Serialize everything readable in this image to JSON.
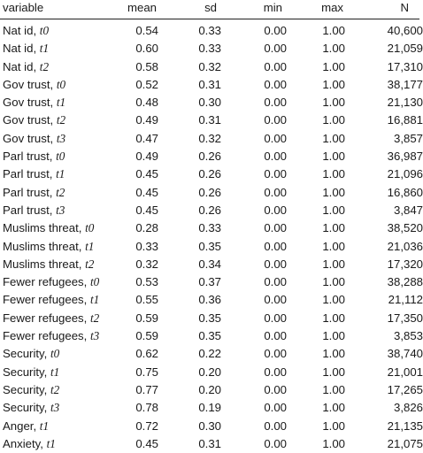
{
  "header": {
    "variable": "variable",
    "mean": "mean",
    "sd": "sd",
    "min": "min",
    "max": "max",
    "n": "N"
  },
  "rows": [
    {
      "name": "Nat id, ",
      "time": "t0",
      "mean": "0.54",
      "sd": "0.33",
      "min": "0.00",
      "max": "1.00",
      "n": "40,600"
    },
    {
      "name": "Nat id, ",
      "time": "t1",
      "mean": "0.60",
      "sd": "0.33",
      "min": "0.00",
      "max": "1.00",
      "n": "21,059"
    },
    {
      "name": "Nat id, ",
      "time": "t2",
      "mean": "0.58",
      "sd": "0.32",
      "min": "0.00",
      "max": "1.00",
      "n": "17,310"
    },
    {
      "name": "Gov trust, ",
      "time": "t0",
      "mean": "0.52",
      "sd": "0.31",
      "min": "0.00",
      "max": "1.00",
      "n": "38,177"
    },
    {
      "name": "Gov trust, ",
      "time": "t1",
      "mean": "0.48",
      "sd": "0.30",
      "min": "0.00",
      "max": "1.00",
      "n": "21,130"
    },
    {
      "name": "Gov trust, ",
      "time": "t2",
      "mean": "0.49",
      "sd": "0.31",
      "min": "0.00",
      "max": "1.00",
      "n": "16,881"
    },
    {
      "name": "Gov trust, ",
      "time": "t3",
      "mean": "0.47",
      "sd": "0.32",
      "min": "0.00",
      "max": "1.00",
      "n": "3,857"
    },
    {
      "name": "Parl trust, ",
      "time": "t0",
      "mean": "0.49",
      "sd": "0.26",
      "min": "0.00",
      "max": "1.00",
      "n": "36,987"
    },
    {
      "name": "Parl trust, ",
      "time": "t1",
      "mean": "0.45",
      "sd": "0.26",
      "min": "0.00",
      "max": "1.00",
      "n": "21,096"
    },
    {
      "name": "Parl trust, ",
      "time": "t2",
      "mean": "0.45",
      "sd": "0.26",
      "min": "0.00",
      "max": "1.00",
      "n": "16,860"
    },
    {
      "name": "Parl trust, ",
      "time": "t3",
      "mean": "0.45",
      "sd": "0.26",
      "min": "0.00",
      "max": "1.00",
      "n": "3,847"
    },
    {
      "name": "Muslims threat, ",
      "time": "t0",
      "mean": "0.28",
      "sd": "0.33",
      "min": "0.00",
      "max": "1.00",
      "n": "38,520"
    },
    {
      "name": "Muslims threat, ",
      "time": "t1",
      "mean": "0.33",
      "sd": "0.35",
      "min": "0.00",
      "max": "1.00",
      "n": "21,036"
    },
    {
      "name": "Muslims threat, ",
      "time": "t2",
      "mean": "0.32",
      "sd": "0.34",
      "min": "0.00",
      "max": "1.00",
      "n": "17,320"
    },
    {
      "name": "Fewer refugees, ",
      "time": "t0",
      "mean": "0.53",
      "sd": "0.37",
      "min": "0.00",
      "max": "1.00",
      "n": "38,288"
    },
    {
      "name": "Fewer refugees, ",
      "time": "t1",
      "mean": "0.55",
      "sd": "0.36",
      "min": "0.00",
      "max": "1.00",
      "n": "21,112"
    },
    {
      "name": "Fewer refugees, ",
      "time": "t2",
      "mean": "0.59",
      "sd": "0.35",
      "min": "0.00",
      "max": "1.00",
      "n": "17,350"
    },
    {
      "name": "Fewer refugees, ",
      "time": "t3",
      "mean": "0.59",
      "sd": "0.35",
      "min": "0.00",
      "max": "1.00",
      "n": "3,853"
    },
    {
      "name": "Security, ",
      "time": "t0",
      "mean": "0.62",
      "sd": "0.22",
      "min": "0.00",
      "max": "1.00",
      "n": "38,740"
    },
    {
      "name": "Security, ",
      "time": "t1",
      "mean": "0.75",
      "sd": "0.20",
      "min": "0.00",
      "max": "1.00",
      "n": "21,001"
    },
    {
      "name": "Security, ",
      "time": "t2",
      "mean": "0.77",
      "sd": "0.20",
      "min": "0.00",
      "max": "1.00",
      "n": "17,265"
    },
    {
      "name": "Security, ",
      "time": "t3",
      "mean": "0.78",
      "sd": "0.19",
      "min": "0.00",
      "max": "1.00",
      "n": "3,826"
    },
    {
      "name": "Anger, ",
      "time": "t1",
      "mean": "0.72",
      "sd": "0.30",
      "min": "0.00",
      "max": "1.00",
      "n": "21,135"
    },
    {
      "name": "Anxiety, ",
      "time": "t1",
      "mean": "0.45",
      "sd": "0.31",
      "min": "0.00",
      "max": "1.00",
      "n": "21,075"
    }
  ]
}
